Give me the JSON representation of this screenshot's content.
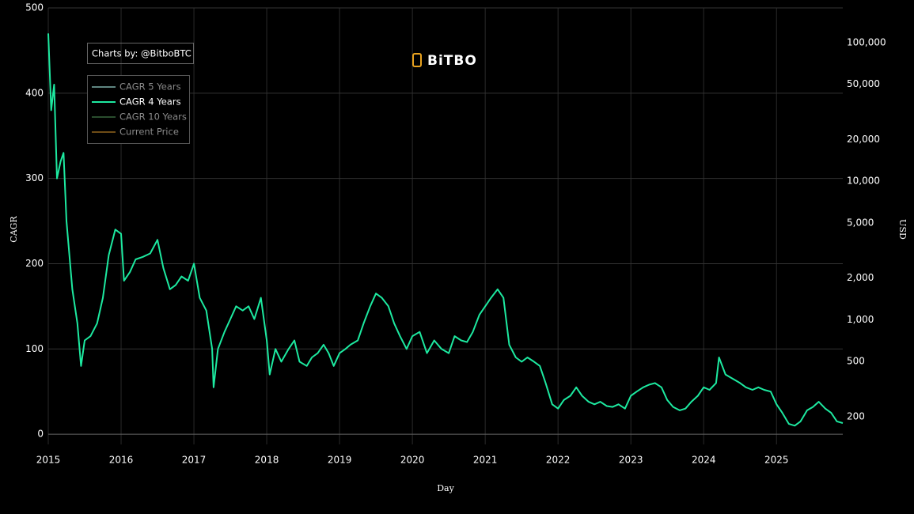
{
  "chart_data": {
    "type": "line",
    "credit": "Charts by: @BitboBTC",
    "logo": "BiTBO",
    "x_label": "Day",
    "y_label": "CAGR",
    "y2_label": "USD",
    "x": [
      2015.0,
      2015.04,
      2015.08,
      2015.12,
      2015.17,
      2015.21,
      2015.25,
      2015.33,
      2015.4,
      2015.45,
      2015.5,
      2015.58,
      2015.67,
      2015.75,
      2015.83,
      2015.92,
      2016.0,
      2016.04,
      2016.12,
      2016.2,
      2016.3,
      2016.4,
      2016.5,
      2016.58,
      2016.67,
      2016.75,
      2016.83,
      2016.92,
      2017.0,
      2017.08,
      2017.17,
      2017.25,
      2017.27,
      2017.33,
      2017.42,
      2017.5,
      2017.58,
      2017.67,
      2017.75,
      2017.83,
      2017.92,
      2018.0,
      2018.04,
      2018.12,
      2018.2,
      2018.3,
      2018.38,
      2018.45,
      2018.55,
      2018.62,
      2018.7,
      2018.78,
      2018.85,
      2018.92,
      2019.0,
      2019.08,
      2019.15,
      2019.25,
      2019.33,
      2019.42,
      2019.5,
      2019.58,
      2019.67,
      2019.75,
      2019.83,
      2019.92,
      2020.0,
      2020.1,
      2020.2,
      2020.3,
      2020.4,
      2020.5,
      2020.58,
      2020.67,
      2020.75,
      2020.83,
      2020.92,
      2021.0,
      2021.08,
      2021.17,
      2021.25,
      2021.33,
      2021.42,
      2021.5,
      2021.58,
      2021.67,
      2021.75,
      2021.83,
      2021.92,
      2022.0,
      2022.08,
      2022.17,
      2022.25,
      2022.33,
      2022.42,
      2022.5,
      2022.58,
      2022.67,
      2022.75,
      2022.83,
      2022.92,
      2023.0,
      2023.08,
      2023.17,
      2023.25,
      2023.33,
      2023.42,
      2023.5,
      2023.58,
      2023.67,
      2023.75,
      2023.83,
      2023.92,
      2024.0,
      2024.08,
      2024.17,
      2024.21,
      2024.3,
      2024.4,
      2024.5,
      2024.58,
      2024.67,
      2024.75,
      2024.83,
      2024.92,
      2025.0,
      2025.08,
      2025.17,
      2025.25,
      2025.33,
      2025.42,
      2025.5,
      2025.58,
      2025.67,
      2025.75,
      2025.83,
      2025.91
    ],
    "series": [
      {
        "name": "CAGR 4 Years",
        "color": "#1de9a0",
        "values": [
          470,
          380,
          410,
          300,
          320,
          330,
          250,
          170,
          130,
          80,
          110,
          115,
          130,
          160,
          210,
          240,
          235,
          180,
          190,
          205,
          208,
          212,
          228,
          195,
          170,
          175,
          185,
          180,
          200,
          160,
          145,
          100,
          55,
          100,
          120,
          135,
          150,
          145,
          150,
          135,
          160,
          110,
          70,
          100,
          85,
          100,
          110,
          85,
          80,
          90,
          95,
          105,
          95,
          80,
          95,
          100,
          105,
          110,
          130,
          150,
          165,
          160,
          150,
          130,
          115,
          100,
          115,
          120,
          95,
          110,
          100,
          95,
          115,
          110,
          108,
          120,
          140,
          150,
          160,
          170,
          160,
          105,
          90,
          85,
          90,
          85,
          80,
          60,
          35,
          30,
          40,
          45,
          55,
          45,
          38,
          35,
          38,
          33,
          32,
          35,
          30,
          45,
          50,
          55,
          58,
          60,
          55,
          40,
          32,
          28,
          30,
          38,
          45,
          55,
          52,
          60,
          90,
          70,
          65,
          60,
          55,
          52,
          55,
          52,
          50,
          35,
          25,
          12,
          10,
          15,
          28,
          32,
          38,
          30,
          25,
          15,
          13
        ]
      }
    ],
    "legend": [
      {
        "name": "CAGR 5 Years",
        "color": "#5f8580",
        "active": false
      },
      {
        "name": "CAGR 4 Years",
        "color": "#1de9a0",
        "active": true
      },
      {
        "name": "CAGR 10 Years",
        "color": "#2a4d2e",
        "active": false
      },
      {
        "name": "Current Price",
        "color": "#6e4c16",
        "active": false
      }
    ],
    "xlim": [
      2015,
      2025.91
    ],
    "xticks": [
      2015,
      2016,
      2017,
      2018,
      2019,
      2020,
      2021,
      2022,
      2023,
      2024,
      2025
    ],
    "ylim": [
      -12,
      500
    ],
    "yticks": [
      0,
      100,
      200,
      300,
      400,
      500
    ],
    "y2lim": [
      126,
      178000
    ],
    "y2log": true,
    "y2ticks": [
      {
        "value": 200,
        "label": "200"
      },
      {
        "value": 500,
        "label": "500"
      },
      {
        "value": 1000,
        "label": "1,000"
      },
      {
        "value": 2000,
        "label": "2,000"
      },
      {
        "value": 5000,
        "label": "5,000"
      },
      {
        "value": 10000,
        "label": "10,000"
      },
      {
        "value": 20000,
        "label": "20,000"
      },
      {
        "value": 50000,
        "label": "50,000"
      },
      {
        "value": 100000,
        "label": "100,000"
      }
    ],
    "grid": true
  }
}
